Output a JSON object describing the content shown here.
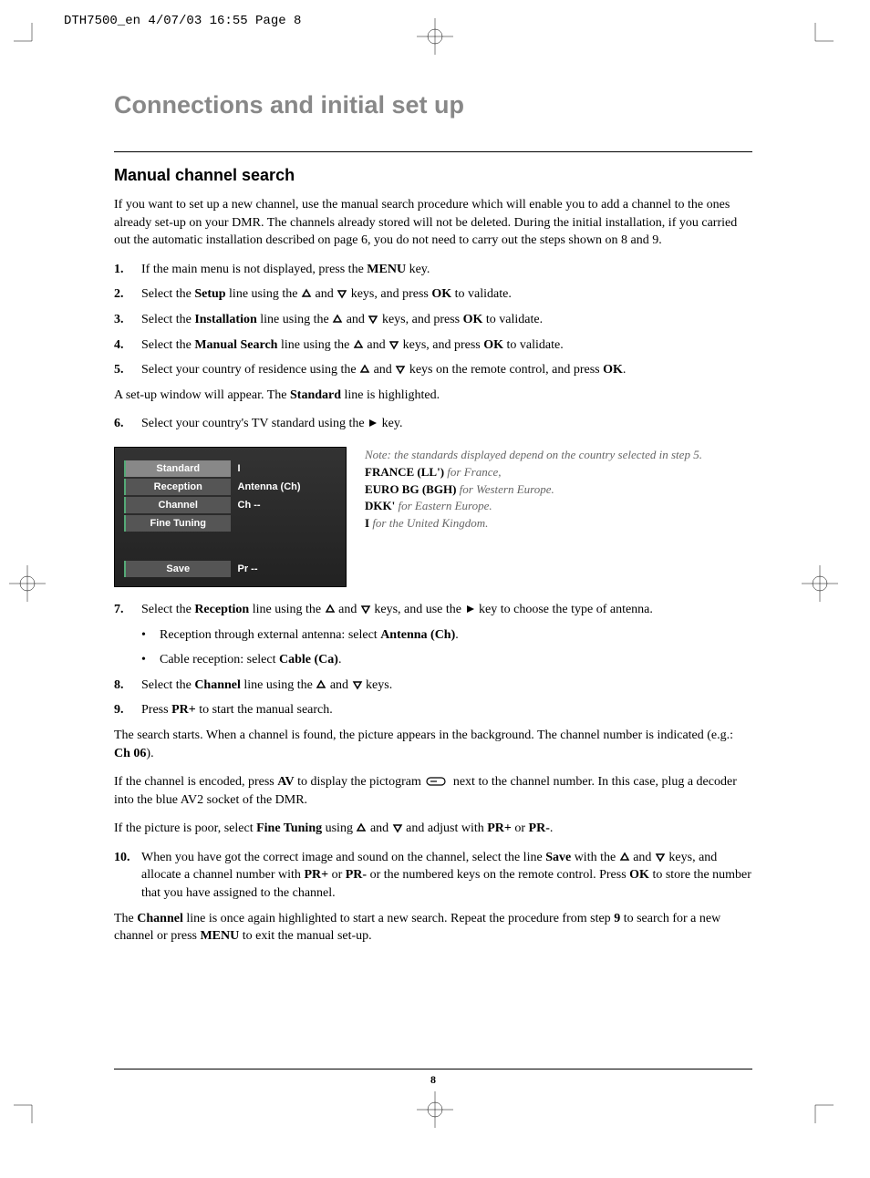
{
  "header_slug": "DTH7500_en  4/07/03  16:55  Page 8",
  "main_title": "Connections and initial set up",
  "section_title": "Manual channel search",
  "intro": "If you want to set up a new channel, use the manual search procedure which will enable you to add a channel to the ones already set-up on your DMR. The channels already stored will not be deleted. During the initial installation, if you carried out the automatic installation described on page 6, you do not need to carry out the steps shown on 8 and 9.",
  "steps": {
    "s1_pre": "If the main menu is not displayed, press the ",
    "s1_b1": "MENU",
    "s1_post": " key.",
    "s2_pre": "Select the ",
    "s2_b1": "Setup",
    "s2_mid": " line using the  ",
    "s2_mid2": "  and  ",
    "s2_mid3": "  keys, and press ",
    "s2_b2": "OK",
    "s2_post": " to validate.",
    "s3_pre": "Select the ",
    "s3_b1": "Installation",
    "s3_mid": " line using the  ",
    "s3_mid2": "  and  ",
    "s3_mid3": "  keys, and press ",
    "s3_b2": "OK",
    "s3_post": " to validate.",
    "s4_pre": "Select the ",
    "s4_b1": "Manual Search",
    "s4_mid": " line using the  ",
    "s4_mid2": "  and  ",
    "s4_mid3": "  keys, and press ",
    "s4_b2": "OK",
    "s4_post": " to validate.",
    "s5_pre": "Select your country of residence using the  ",
    "s5_mid": "  and  ",
    "s5_mid2": "  keys on the remote control, and press ",
    "s5_b1": "OK",
    "s5_post": "."
  },
  "setup_window_pre": "A set-up window will appear. The ",
  "setup_window_b": "Standard",
  "setup_window_post": " line is highlighted.",
  "s6_pre": "Select your country's TV standard using the  ",
  "s6_post": " key.",
  "osd": {
    "rows": [
      {
        "label": "Standard",
        "value": "I",
        "selected": true
      },
      {
        "label": "Reception",
        "value": "Antenna (Ch)",
        "selected": false
      },
      {
        "label": "Channel",
        "value": "Ch --",
        "selected": false
      },
      {
        "label": "Fine Tuning",
        "value": "",
        "selected": false
      }
    ],
    "save_label": "Save",
    "save_value": "Pr  --"
  },
  "notes": {
    "note1": "Note: the standards displayed depend on the country selected in step 5.",
    "france_b": "FRANCE (LL')",
    "france_i": " for France,",
    "euro_b": "EURO BG (BGH)",
    "euro_i": " for Western Europe.",
    "dkk_b": "DKK'",
    "dkk_i": " for Eastern Europe.",
    "i_b": "I",
    "i_i": " for the United Kingdom."
  },
  "s7_pre": "Select the ",
  "s7_b1": "Reception",
  "s7_mid": " line using the  ",
  "s7_mid2": "  and  ",
  "s7_mid3": "  keys, and use the  ",
  "s7_post": " key to choose the type of antenna.",
  "bullet1_pre": "Reception through external antenna: select ",
  "bullet1_b": "Antenna (Ch)",
  "bullet1_post": ".",
  "bullet2_pre": "Cable reception: select ",
  "bullet2_b": "Cable (Ca)",
  "bullet2_post": ".",
  "s8_pre": "Select the ",
  "s8_b1": "Channel",
  "s8_mid": " line using the  ",
  "s8_mid2": "  and  ",
  "s8_post": "  keys.",
  "s9_pre": "Press ",
  "s9_b1": "PR+",
  "s9_post": " to start the manual search.",
  "search_pre": "The search starts. When a channel is found, the picture appears in the background. The channel number is indicated (e.g.: ",
  "search_b": "Ch 06",
  "search_post": ").",
  "encoded_pre": "If the channel is encoded, press ",
  "encoded_b1": "AV",
  "encoded_mid": " to display the pictogram ",
  "encoded_post": " next to the channel number. In this case, plug a decoder into the blue AV2 socket of the DMR.",
  "poor_pre": "If the picture is poor, select ",
  "poor_b1": "Fine Tuning",
  "poor_mid": " using  ",
  "poor_mid2": "  and  ",
  "poor_mid3": "  and adjust with ",
  "poor_b2": "PR+",
  "poor_mid4": " or ",
  "poor_b3": "PR-",
  "poor_post": ".",
  "s10_pre": "When you have got the correct image and sound on the channel, select the line ",
  "s10_b1": "Save",
  "s10_mid": " with the  ",
  "s10_mid2": "  and  ",
  "s10_mid3": "  keys, and allocate a channel number with ",
  "s10_b2": "PR+",
  "s10_mid4": " or ",
  "s10_b3": "PR-",
  "s10_mid5": " or the numbered keys on the remote control. Press ",
  "s10_b4": "OK",
  "s10_post": " to store the number that you have assigned to the channel.",
  "final_pre": "The ",
  "final_b1": "Channel",
  "final_mid": " line is once again highlighted to start a new search. Repeat the procedure from step ",
  "final_b2": "9",
  "final_mid2": " to search for a new channel or press ",
  "final_b3": "MENU",
  "final_post": " to exit the manual set-up.",
  "page_num": "8",
  "nums": {
    "n1": "1.",
    "n2": "2.",
    "n3": "3.",
    "n4": "4.",
    "n5": "5.",
    "n6": "6.",
    "n7": "7.",
    "n8": "8.",
    "n9": "9.",
    "n10": "10."
  }
}
